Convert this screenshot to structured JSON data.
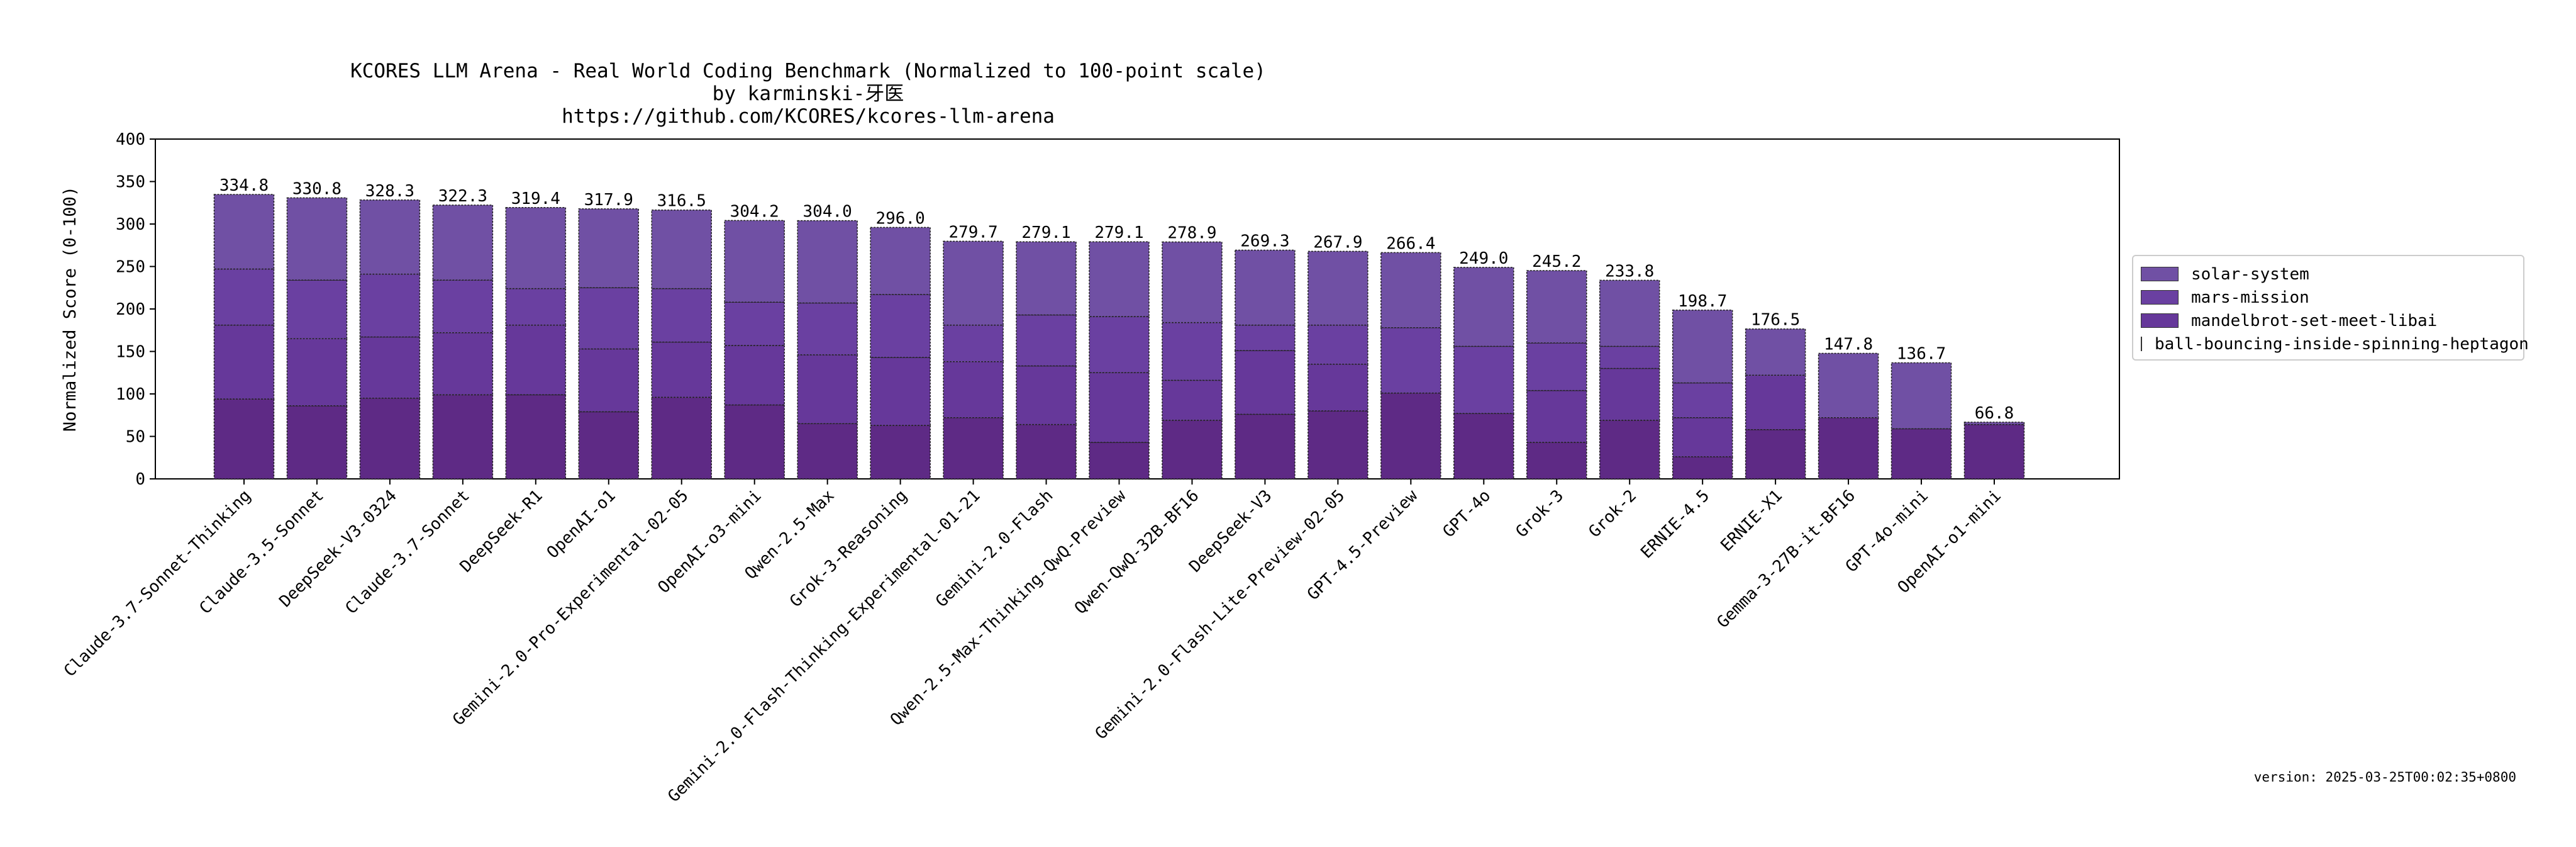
{
  "chart_data": {
    "type": "bar",
    "stacked": true,
    "title": "KCORES LLM Arena - Real World Coding Benchmark (Normalized to 100-point scale)",
    "subtitle_lines": [
      "by karminski-牙医",
      "https://github.com/KCORES/kcores-llm-arena"
    ],
    "xlabel": "",
    "ylabel": "Normalized Score (0-100)",
    "ylim": [
      0,
      400
    ],
    "yticks": [
      0,
      50,
      100,
      150,
      200,
      250,
      300,
      350,
      400
    ],
    "grid": false,
    "legend_position": "right-center",
    "categories": [
      "Claude-3.7-Sonnet-Thinking",
      "Claude-3.5-Sonnet",
      "DeepSeek-V3-0324",
      "Claude-3.7-Sonnet",
      "DeepSeek-R1",
      "OpenAI-o1",
      "Gemini-2.0-Pro-Experimental-02-05",
      "OpenAI-o3-mini",
      "Qwen-2.5-Max",
      "Grok-3-Reasoning",
      "Gemini-2.0-Flash-Thinking-Experimental-01-21",
      "Gemini-2.0-Flash",
      "Qwen-2.5-Max-Thinking-QwQ-Preview",
      "Qwen-QwQ-32B-BF16",
      "DeepSeek-V3",
      "Gemini-2.0-Flash-Lite-Preview-02-05",
      "GPT-4.5-Preview",
      "GPT-4o",
      "Grok-3",
      "Grok-2",
      "ERNIE-4.5",
      "ERNIE-X1",
      "Gemma-3-27B-it-BF16",
      "GPT-4o-mini",
      "OpenAI-o1-mini"
    ],
    "totals": [
      334.8,
      330.8,
      328.3,
      322.3,
      319.4,
      317.9,
      316.5,
      304.2,
      304.0,
      296.0,
      279.7,
      279.1,
      279.1,
      278.9,
      269.3,
      267.9,
      266.4,
      249.0,
      245.2,
      233.8,
      198.7,
      176.5,
      147.8,
      136.7,
      66.8
    ],
    "series": [
      {
        "name": "ball-bouncing-inside-spinning-heptagon",
        "color": "#5e2a85",
        "values": [
          94,
          86,
          95,
          99,
          99,
          79,
          96,
          87,
          65,
          63,
          72,
          64,
          43,
          69,
          76,
          80,
          101,
          77,
          43,
          69,
          26,
          58,
          72,
          59,
          64
        ]
      },
      {
        "name": "mandelbrot-set-meet-libai",
        "color": "#66389a",
        "values": [
          87,
          79,
          72,
          73,
          82,
          74,
          65,
          70,
          81,
          80,
          66,
          69,
          82,
          47,
          75,
          55,
          0,
          0,
          61,
          61,
          46,
          64,
          0,
          0,
          0
        ]
      },
      {
        "name": "mars-mission",
        "color": "#6a40a1",
        "values": [
          66,
          69,
          74,
          62,
          43,
          72,
          63,
          51,
          61,
          74,
          43,
          60,
          66,
          68,
          30,
          46,
          77,
          79,
          56,
          26,
          41,
          0,
          0,
          0,
          0
        ]
      },
      {
        "name": "solar-system",
        "color": "#7050a4",
        "values": [
          87.8,
          96.8,
          87.3,
          88.3,
          95.4,
          92.9,
          92.5,
          96.2,
          97.0,
          79.0,
          98.7,
          86.1,
          88.1,
          94.9,
          88.3,
          86.9,
          88.4,
          93.0,
          85.2,
          77.8,
          85.7,
          54.5,
          75.8,
          77.7,
          2.8
        ]
      }
    ]
  },
  "legend": {
    "items": [
      {
        "label": "solar-system",
        "color": "#7050a4"
      },
      {
        "label": "mars-mission",
        "color": "#6a40a1"
      },
      {
        "label": "mandelbrot-set-meet-libai",
        "color": "#66389a"
      },
      {
        "label": "ball-bouncing-inside-spinning-heptagon",
        "color": "#5e2a85"
      }
    ]
  },
  "version_text": "version: 2025-03-25T00:02:35+0800"
}
